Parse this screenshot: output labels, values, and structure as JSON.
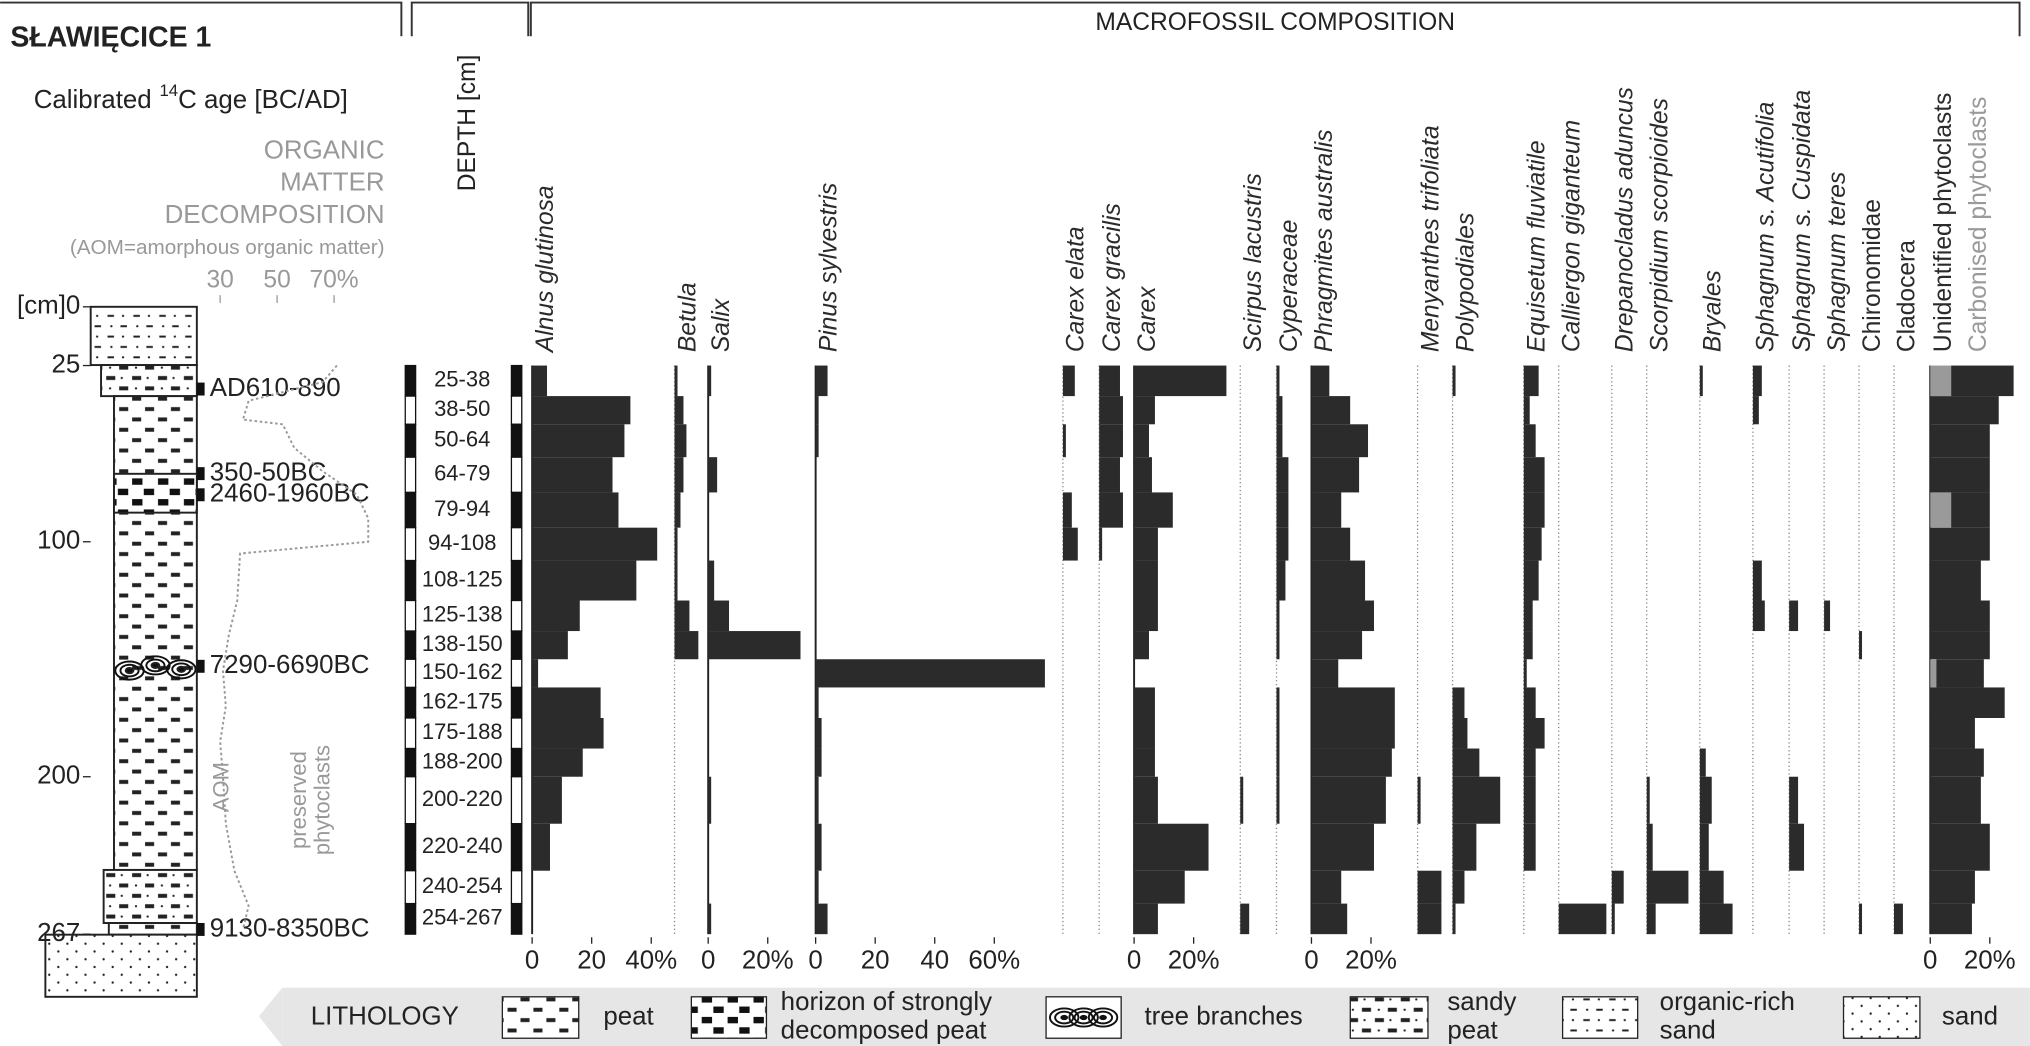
{
  "header": {
    "title": "SŁAWIĘCICE 1",
    "age_label": [
      "Calibrated",
      "14",
      "C age [BC/AD]"
    ],
    "om_title": [
      "ORGANIC",
      "MATTER",
      "DECOMPOSITION"
    ],
    "om_note": "(AOM=amorphous organic matter)",
    "depth_title": "DEPTH [cm]",
    "section_title": "MACROFOSSIL COMPOSITION"
  },
  "chart_data": {
    "type": "stratigraphic",
    "yticks": [
      {
        "value": 0,
        "label": "[cm]0"
      },
      25,
      100,
      200,
      267
    ],
    "dates": {
      "labels": [
        "AD610-890",
        "350-50BC",
        "2460-1960BC",
        "7290-6690BC",
        "9130-8350BC"
      ],
      "depth": [
        35,
        71,
        80,
        153,
        265
      ]
    },
    "om": {
      "xticks": [
        30,
        50,
        {
          "value": 70,
          "label": "70%"
        }
      ],
      "labels": [
        "AOM",
        "preserved",
        "phytoclasts"
      ],
      "depth": [
        25,
        32,
        40,
        48,
        50,
        60,
        70,
        75,
        80,
        90,
        100,
        105,
        125,
        140,
        155,
        170,
        185,
        200,
        220,
        240,
        255,
        265
      ],
      "values": [
        71,
        66,
        40,
        38,
        52,
        56,
        66,
        72,
        78,
        82,
        82,
        37,
        36,
        33,
        31,
        32,
        30,
        31,
        32,
        35,
        40,
        38
      ]
    },
    "categories": [
      "25-38",
      "38-50",
      "50-64",
      "64-79",
      "79-94",
      "94-108",
      "108-125",
      "125-138",
      "138-150",
      "150-162",
      "162-175",
      "175-188",
      "188-200",
      "200-220",
      "220-240",
      "240-254",
      "254-267"
    ],
    "depth_top": [
      25,
      38,
      50,
      64,
      79,
      94,
      108,
      125,
      138,
      150,
      162,
      175,
      188,
      200,
      220,
      240,
      254
    ],
    "depth_bottom": [
      38,
      50,
      64,
      79,
      94,
      108,
      125,
      138,
      150,
      162,
      175,
      188,
      200,
      220,
      240,
      254,
      267
    ],
    "series": [
      {
        "name": "Alnus glutinosa",
        "italic": true,
        "color": "#2b2b2b",
        "values": [
          5,
          33,
          31,
          27,
          29,
          42,
          35,
          16,
          12,
          2,
          23,
          24,
          17,
          10,
          6,
          0,
          0
        ],
        "xticks": [
          0,
          20,
          {
            "value": 40,
            "label": "40%"
          }
        ]
      },
      {
        "name": "Betula",
        "italic": true,
        "color": "#2b2b2b",
        "values": [
          1,
          3,
          4,
          3,
          2,
          1,
          1,
          5,
          8,
          0,
          0,
          0,
          0,
          0,
          0,
          0,
          0
        ]
      },
      {
        "name": "Salix",
        "italic": true,
        "color": "#2b2b2b",
        "values": [
          1,
          0,
          0,
          3,
          0,
          0,
          2,
          7,
          31,
          0,
          0,
          0,
          0,
          1,
          0,
          0,
          1
        ],
        "xticks": [
          0,
          {
            "value": 20,
            "label": "20%"
          }
        ]
      },
      {
        "name": "Pinus sylvestris",
        "italic": true,
        "color": "#2b2b2b",
        "values": [
          4,
          1,
          1,
          0,
          0,
          0,
          0,
          0,
          0,
          77,
          1,
          2,
          2,
          1,
          2,
          1,
          4
        ],
        "xticks": [
          0,
          20,
          40,
          {
            "value": 60,
            "label": "60%"
          }
        ]
      },
      {
        "name": "Carex elata",
        "italic": true,
        "color": "#2b2b2b",
        "values": [
          4,
          0,
          1,
          0,
          3,
          5,
          0,
          0,
          0,
          0,
          0,
          0,
          0,
          0,
          0,
          0,
          0
        ]
      },
      {
        "name": "Carex gracilis",
        "italic": true,
        "color": "#2b2b2b",
        "values": [
          7,
          8,
          8,
          7,
          8,
          1,
          0,
          0,
          0,
          0,
          0,
          0,
          0,
          0,
          0,
          0,
          0
        ]
      },
      {
        "name": "Carex",
        "italic": true,
        "color": "#2b2b2b",
        "values": [
          31,
          7,
          5,
          6,
          13,
          8,
          8,
          8,
          5,
          0,
          7,
          7,
          7,
          8,
          25,
          17,
          8
        ],
        "xticks": [
          0,
          {
            "value": 20,
            "label": "20%"
          }
        ]
      },
      {
        "name": "Scirpus lacustris",
        "italic": true,
        "color": "#2b2b2b",
        "values": [
          0,
          0,
          0,
          0,
          0,
          0,
          0,
          0,
          0,
          0,
          0,
          0,
          0,
          1,
          0,
          0,
          3
        ]
      },
      {
        "name": "Cyperaceae",
        "italic": true,
        "color": "#2b2b2b",
        "values": [
          1,
          2,
          2,
          4,
          4,
          4,
          3,
          1,
          1,
          0,
          1,
          1,
          1,
          1,
          0,
          0,
          0
        ]
      },
      {
        "name": "Phragmites australis",
        "italic": true,
        "color": "#2b2b2b",
        "values": [
          6,
          13,
          19,
          16,
          10,
          13,
          18,
          21,
          17,
          9,
          28,
          28,
          27,
          25,
          21,
          10,
          12
        ],
        "xticks": [
          0,
          {
            "value": 20,
            "label": "20%"
          }
        ]
      },
      {
        "name": "Menyanthes trifoliata",
        "italic": true,
        "color": "#2b2b2b",
        "values": [
          0,
          0,
          0,
          0,
          0,
          0,
          0,
          0,
          0,
          0,
          0,
          0,
          0,
          1,
          0,
          8,
          8
        ]
      },
      {
        "name": "Polypodiales",
        "italic": true,
        "color": "#2b2b2b",
        "values": [
          1,
          0,
          0,
          0,
          0,
          0,
          0,
          0,
          0,
          0,
          4,
          5,
          9,
          16,
          8,
          4,
          1
        ]
      },
      {
        "name": "Equisetum fluviatile",
        "italic": true,
        "color": "#2b2b2b",
        "values": [
          5,
          2,
          4,
          7,
          7,
          6,
          5,
          3,
          3,
          1,
          4,
          7,
          4,
          4,
          4,
          0,
          0
        ]
      },
      {
        "name": "Calliergon giganteum",
        "italic": true,
        "color": "#2b2b2b",
        "values": [
          0,
          0,
          0,
          0,
          0,
          0,
          0,
          0,
          0,
          0,
          0,
          0,
          0,
          0,
          0,
          0,
          16
        ]
      },
      {
        "name": "Drepanocladus aduncus",
        "italic": true,
        "color": "#2b2b2b",
        "values": [
          0,
          0,
          0,
          0,
          0,
          0,
          0,
          0,
          0,
          0,
          0,
          0,
          0,
          0,
          0,
          4,
          1
        ]
      },
      {
        "name": "Scorpidium scorpioides",
        "italic": true,
        "color": "#2b2b2b",
        "values": [
          0,
          0,
          0,
          0,
          0,
          0,
          0,
          0,
          0,
          0,
          0,
          0,
          0,
          1,
          2,
          14,
          3
        ]
      },
      {
        "name": "Bryales",
        "italic": true,
        "color": "#2b2b2b",
        "values": [
          1,
          0,
          0,
          0,
          0,
          0,
          0,
          0,
          0,
          0,
          0,
          0,
          2,
          4,
          3,
          8,
          11
        ]
      },
      {
        "name": "Sphagnum s. Acutifolia",
        "italic": true,
        "color": "#2b2b2b",
        "values": [
          3,
          2,
          0,
          0,
          0,
          0,
          3,
          4,
          0,
          0,
          0,
          0,
          0,
          0,
          0,
          0,
          0
        ]
      },
      {
        "name": "Sphagnum s. Cuspidata",
        "italic": true,
        "color": "#2b2b2b",
        "values": [
          0,
          0,
          0,
          0,
          0,
          0,
          0,
          3,
          0,
          0,
          0,
          0,
          0,
          3,
          5,
          0,
          0
        ]
      },
      {
        "name": "Sphagnum teres",
        "italic": true,
        "color": "#2b2b2b",
        "values": [
          0,
          0,
          0,
          0,
          0,
          0,
          0,
          2,
          0,
          0,
          0,
          0,
          0,
          0,
          0,
          0,
          0
        ]
      },
      {
        "name": "Chironomidae",
        "italic": false,
        "color": "#2b2b2b",
        "values": [
          0,
          0,
          0,
          0,
          0,
          0,
          0,
          0,
          1,
          0,
          0,
          0,
          0,
          0,
          0,
          0,
          1
        ]
      },
      {
        "name": "Cladocera",
        "italic": false,
        "color": "#2b2b2b",
        "values": [
          0,
          0,
          0,
          0,
          0,
          0,
          0,
          0,
          0,
          0,
          0,
          0,
          0,
          0,
          0,
          0,
          3
        ]
      },
      {
        "name": "Unidentified phytoclasts",
        "italic": false,
        "color": "#2b2b2b",
        "values": [
          21,
          23,
          20,
          20,
          13,
          20,
          17,
          20,
          20,
          16,
          25,
          15,
          18,
          17,
          20,
          15,
          14
        ],
        "xticks": [
          0,
          {
            "value": 20,
            "label": "20%"
          }
        ]
      },
      {
        "name": "Carbonised phytoclasts",
        "italic": false,
        "color": "#9a9a9a",
        "values": [
          7,
          0,
          0,
          0,
          7,
          0,
          0,
          0,
          0,
          2,
          0,
          0,
          0,
          0,
          0,
          0,
          0
        ]
      }
    ]
  },
  "legend": {
    "title": "LITHOLOGY",
    "items": [
      [
        "peat"
      ],
      [
        "horizon of strongly",
        "decomposed peat"
      ],
      [
        "tree branches"
      ],
      [
        "sandy",
        "peat"
      ],
      [
        "organic-rich",
        "sand"
      ],
      [
        "sand"
      ]
    ]
  }
}
